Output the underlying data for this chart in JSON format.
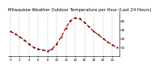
{
  "title": "Milwaukee Weather Outdoor Temperature per Hour (Last 24 Hours)",
  "hours": [
    0,
    1,
    2,
    3,
    4,
    5,
    6,
    7,
    8,
    9,
    10,
    11,
    12,
    13,
    14,
    15,
    16,
    17,
    18,
    19,
    20,
    21,
    22,
    23
  ],
  "temps": [
    28,
    25,
    22,
    18,
    14,
    10,
    8,
    7,
    6,
    8,
    14,
    22,
    32,
    40,
    43,
    42,
    38,
    33,
    28,
    24,
    20,
    16,
    13,
    10
  ],
  "line_color": "#cc0000",
  "marker_color": "#000000",
  "bg_color": "#ffffff",
  "grid_color": "#888888",
  "ylim": [
    0,
    50
  ],
  "ytick_vals": [
    10,
    20,
    30,
    40
  ],
  "ytick_labels": [
    "10",
    "20",
    "30",
    "40"
  ],
  "title_fontsize": 3.8,
  "tick_fontsize": 3.0,
  "linewidth": 0.9,
  "markersize": 1.3
}
